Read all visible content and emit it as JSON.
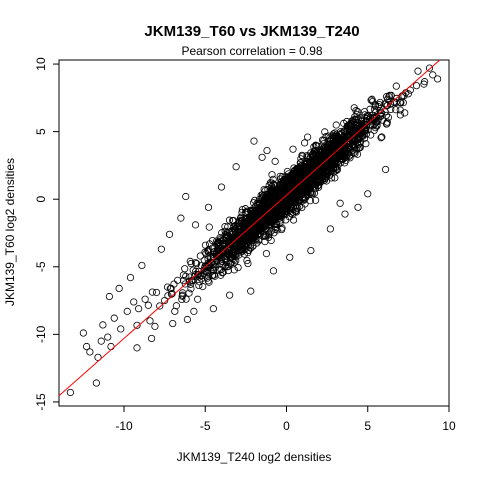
{
  "chart_data": {
    "type": "scatter",
    "title": "JKM139_T60 vs JKM139_T240",
    "subtitle": "Pearson correlation =  0.98",
    "xlabel": "JKM139_T240 log2 densities",
    "ylabel": "JKM139_T60 log2 densities",
    "xlim": [
      -14,
      10
    ],
    "ylim": [
      -15.3,
      10.3
    ],
    "x_ticks": [
      -10,
      -5,
      0,
      5,
      10
    ],
    "y_ticks": [
      -15,
      -10,
      -5,
      0,
      5,
      10
    ],
    "x_tick_labels": [
      "-10",
      "-5",
      "0",
      "5",
      "10"
    ],
    "y_tick_labels": [
      "-15",
      "-10",
      "-5",
      "0",
      "5",
      "10"
    ],
    "grid": false,
    "marker": "open-circle",
    "point_color": "#000000",
    "reference_line": {
      "slope": 1.06,
      "intercept": 0.3,
      "color": "#ff0000"
    },
    "points": [
      [
        -13.3,
        -14.3
      ],
      [
        -11.7,
        -13.6
      ],
      [
        -12.3,
        -10.9
      ],
      [
        -12.1,
        -11.3
      ],
      [
        -11.6,
        -11.7
      ],
      [
        -11.4,
        -10.5
      ],
      [
        -11.0,
        -10.2
      ],
      [
        -10.8,
        -10.9
      ],
      [
        -11.3,
        -9.3
      ],
      [
        -10.6,
        -8.8
      ],
      [
        -10.2,
        -9.6
      ],
      [
        -9.8,
        -8.3
      ],
      [
        -9.4,
        -7.6
      ],
      [
        -9.1,
        -8.1
      ],
      [
        -8.7,
        -7.4
      ],
      [
        -9.2,
        -11.0
      ],
      [
        -8.4,
        -9.0
      ],
      [
        -8.0,
        -6.9
      ],
      [
        -7.8,
        -7.9
      ],
      [
        -7.5,
        -7.5
      ],
      [
        -7.1,
        -6.6
      ],
      [
        -6.7,
        -6.0
      ],
      [
        -6.4,
        -7.1
      ],
      [
        -6.2,
        -5.7
      ],
      [
        -5.9,
        -6.3
      ],
      [
        -5.6,
        -4.7
      ],
      [
        -5.3,
        -4.2
      ],
      [
        -5.1,
        -5.5
      ],
      [
        -4.8,
        -3.9
      ],
      [
        -4.5,
        -5.2
      ],
      [
        -4.3,
        -3.1
      ],
      [
        -4.0,
        -4.6
      ],
      [
        -3.7,
        -2.8
      ],
      [
        -3.4,
        -4.0
      ],
      [
        -3.2,
        -2.3
      ],
      [
        -2.9,
        -3.5
      ],
      [
        -2.6,
        -1.9
      ],
      [
        -2.3,
        -2.8
      ],
      [
        -2.1,
        -1.2
      ],
      [
        -1.8,
        -2.4
      ],
      [
        -1.5,
        -0.9
      ],
      [
        -1.2,
        -1.8
      ],
      [
        -0.9,
        -0.3
      ],
      [
        -0.6,
        -1.2
      ],
      [
        -0.3,
        0.4
      ],
      [
        0.0,
        -0.6
      ],
      [
        0.3,
        0.8
      ],
      [
        0.6,
        0.1
      ],
      [
        0.9,
        1.5
      ],
      [
        1.2,
        0.6
      ],
      [
        1.5,
        2.1
      ],
      [
        1.8,
        1.2
      ],
      [
        2.1,
        2.7
      ],
      [
        2.4,
        1.8
      ],
      [
        2.7,
        3.4
      ],
      [
        3.0,
        2.6
      ],
      [
        3.3,
        4.0
      ],
      [
        3.6,
        3.1
      ],
      [
        3.9,
        4.6
      ],
      [
        4.2,
        3.8
      ],
      [
        4.5,
        5.3
      ],
      [
        4.8,
        4.5
      ],
      [
        5.1,
        5.9
      ],
      [
        5.4,
        5.1
      ],
      [
        5.8,
        6.4
      ],
      [
        6.2,
        5.7
      ],
      [
        6.6,
        7.2
      ],
      [
        7.0,
        6.6
      ],
      [
        7.5,
        7.8
      ],
      [
        8.0,
        8.4
      ],
      [
        8.5,
        8.7
      ],
      [
        9.0,
        9.2
      ],
      [
        8.8,
        9.7
      ],
      [
        9.3,
        8.9
      ],
      [
        6.3,
        7.6
      ],
      [
        -2.0,
        4.3
      ],
      [
        -1.5,
        3.1
      ],
      [
        -3.1,
        2.4
      ],
      [
        -1.2,
        3.6
      ],
      [
        -6.2,
        0.2
      ],
      [
        -4.8,
        -0.6
      ],
      [
        -4.0,
        0.9
      ],
      [
        2.7,
        -2.2
      ],
      [
        3.6,
        -1.1
      ],
      [
        4.4,
        -0.6
      ],
      [
        5.0,
        0.4
      ],
      [
        6.1,
        2.2
      ],
      [
        3.3,
        -0.3
      ],
      [
        -7.7,
        -3.7
      ],
      [
        -5.6,
        -1.9
      ],
      [
        1.3,
        4.6
      ],
      [
        0.4,
        3.7
      ],
      [
        -0.7,
        2.8
      ],
      [
        -8.9,
        -4.9
      ],
      [
        -10.3,
        -6.6
      ],
      [
        -2.2,
        -6.8
      ],
      [
        -0.8,
        -5.3
      ],
      [
        0.2,
        -4.3
      ],
      [
        1.5,
        -3.8
      ],
      [
        -3.5,
        -7.1
      ],
      [
        -7.2,
        -2.6
      ],
      [
        -6.5,
        -1.4
      ],
      [
        -9.6,
        -5.8
      ],
      [
        -10.9,
        -7.2
      ],
      [
        -12.5,
        -9.9
      ],
      [
        -8.3,
        -10.3
      ],
      [
        -7.0,
        -9.2
      ],
      [
        -5.7,
        -8.3
      ],
      [
        -4.5,
        -8.1
      ],
      [
        -6.1,
        -8.9
      ]
    ]
  }
}
